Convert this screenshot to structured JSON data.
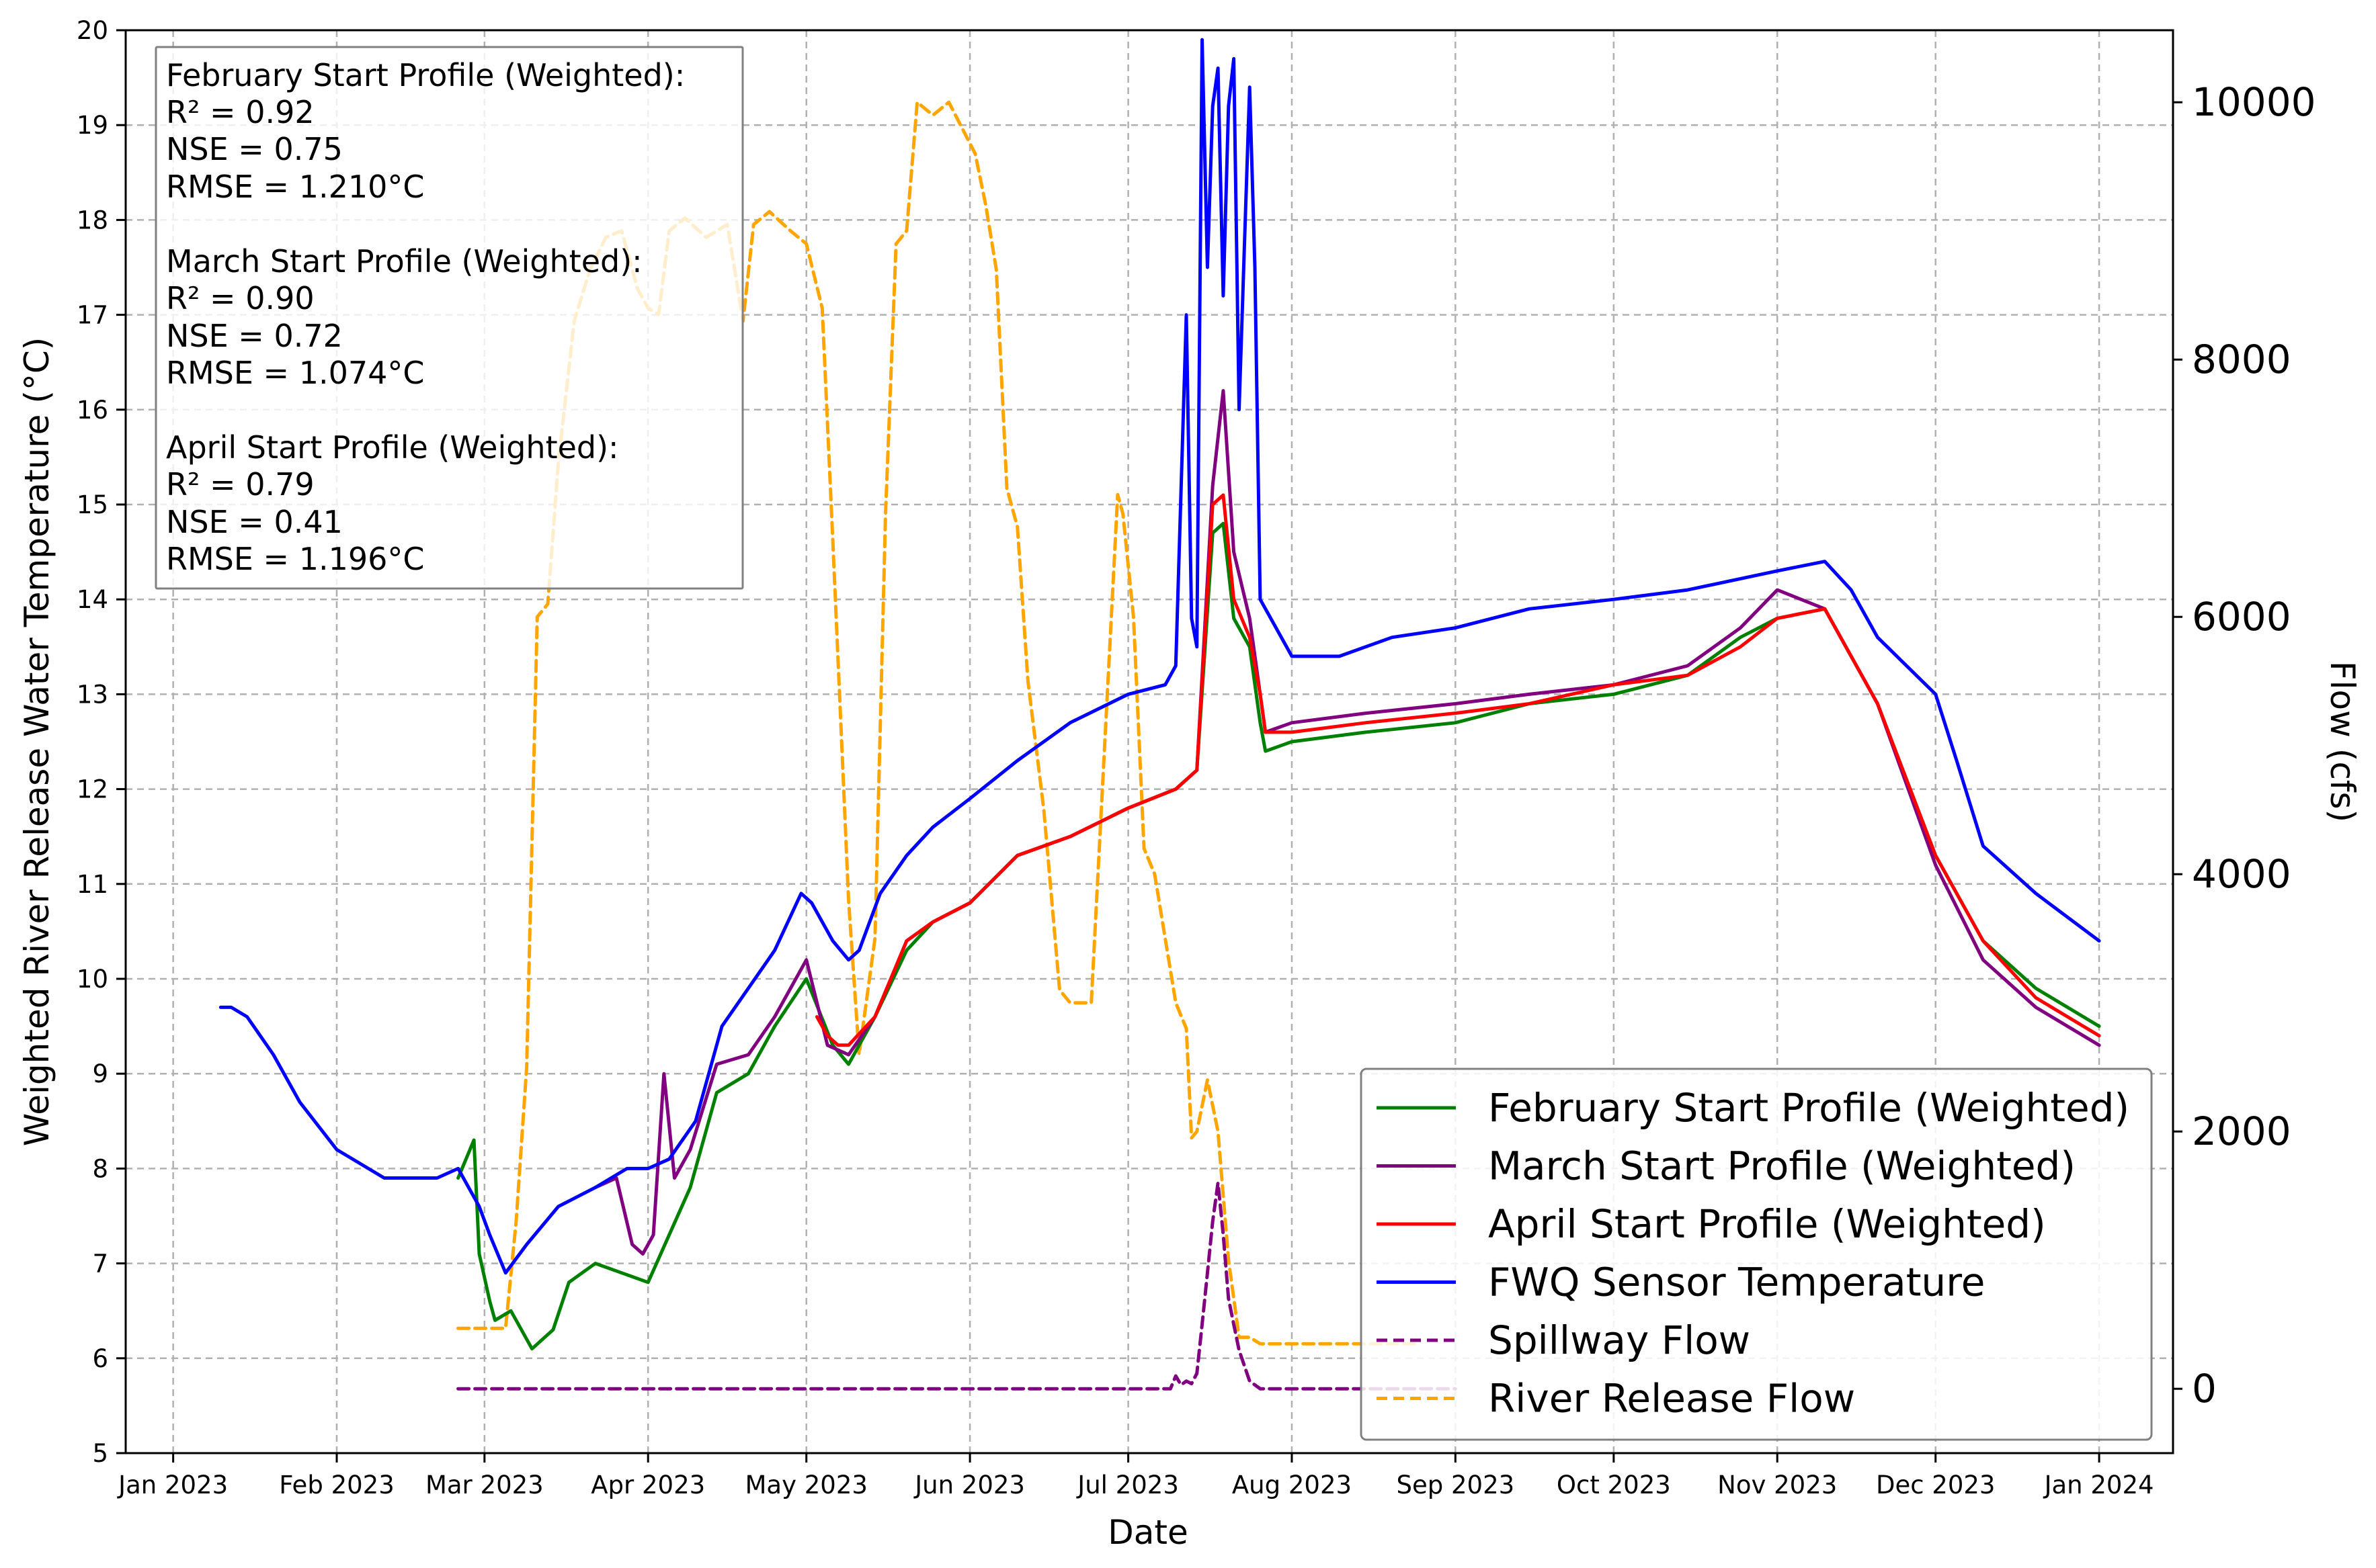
{
  "colors": {
    "february": "#008000",
    "march": "#800080",
    "april": "#ff0000",
    "sensor": "#0000ff",
    "spillway": "#800080",
    "river": "#ffa500",
    "grid": "#b0b0b0"
  },
  "stats": {
    "lines": [
      "February Start Profile (Weighted):",
      "R² = 0.92",
      "NSE = 0.75",
      "RMSE = 1.210°C",
      "",
      "March Start Profile (Weighted):",
      "R² = 0.90",
      "NSE = 0.72",
      "RMSE = 1.074°C",
      "",
      "April Start Profile (Weighted):",
      "R² = 0.79",
      "NSE = 0.41",
      "RMSE = 1.196°C"
    ]
  },
  "chart_data": {
    "type": "line",
    "xlabel": "Date",
    "ylabel": "Weighted River Release Water Temperature (°C)",
    "y2label": "Flow (cfs)",
    "xlim": [
      "2022-12-23",
      "2024-01-15"
    ],
    "ylim": [
      5,
      20
    ],
    "y2lim": [
      -500,
      10560
    ],
    "grid": true,
    "legend_position": "lower-right",
    "x_ticks": [
      "2023-01-01",
      "2023-02-01",
      "2023-03-01",
      "2023-04-01",
      "2023-05-01",
      "2023-06-01",
      "2023-07-01",
      "2023-08-01",
      "2023-09-01",
      "2023-10-01",
      "2023-11-01",
      "2023-12-01",
      "2024-01-01"
    ],
    "x_tick_labels": [
      "Jan 2023",
      "Feb 2023",
      "Mar 2023",
      "Apr 2023",
      "May 2023",
      "Jun 2023",
      "Jul 2023",
      "Aug 2023",
      "Sep 2023",
      "Oct 2023",
      "Nov 2023",
      "Dec 2023",
      "Jan 2024"
    ],
    "y_ticks": [
      "5",
      "6",
      "7",
      "8",
      "9",
      "10",
      "11",
      "12",
      "13",
      "14",
      "15",
      "16",
      "17",
      "18",
      "19",
      "20"
    ],
    "y2_ticks": [
      "0",
      "2000",
      "4000",
      "6000",
      "8000",
      "10000"
    ],
    "series": [
      {
        "name": "February Start Profile (Weighted)",
        "axis": "left",
        "style": "solid",
        "x": [
          "2023-02-24",
          "2023-02-27",
          "2023-02-28",
          "2023-03-02",
          "2023-03-03",
          "2023-03-06",
          "2023-03-10",
          "2023-03-14",
          "2023-03-17",
          "2023-03-22",
          "2023-03-27",
          "2023-04-01",
          "2023-04-05",
          "2023-04-09",
          "2023-04-14",
          "2023-04-20",
          "2023-04-25",
          "2023-05-01",
          "2023-05-06",
          "2023-05-09",
          "2023-05-14",
          "2023-05-20",
          "2023-05-25",
          "2023-06-01",
          "2023-06-10",
          "2023-06-20",
          "2023-07-01",
          "2023-07-10",
          "2023-07-14",
          "2023-07-17",
          "2023-07-19",
          "2023-07-21",
          "2023-07-24",
          "2023-07-26",
          "2023-07-27",
          "2023-08-01",
          "2023-08-15",
          "2023-09-01",
          "2023-09-15",
          "2023-10-01",
          "2023-10-15",
          "2023-10-25",
          "2023-11-01",
          "2023-11-10",
          "2023-11-20",
          "2023-12-01",
          "2023-12-10",
          "2023-12-20",
          "2024-01-01"
        ],
        "y": [
          7.9,
          8.3,
          7.1,
          6.6,
          6.4,
          6.5,
          6.1,
          6.3,
          6.8,
          7.0,
          6.9,
          6.8,
          7.3,
          7.8,
          8.8,
          9.0,
          9.5,
          10.0,
          9.3,
          9.1,
          9.6,
          10.3,
          10.6,
          10.8,
          11.3,
          11.5,
          11.8,
          12.0,
          12.2,
          14.7,
          14.8,
          13.8,
          13.5,
          12.7,
          12.4,
          12.5,
          12.6,
          12.7,
          12.9,
          13.0,
          13.2,
          13.6,
          13.8,
          13.9,
          12.9,
          11.3,
          10.4,
          9.9,
          9.5
        ]
      },
      {
        "name": "March Start Profile (Weighted)",
        "axis": "left",
        "style": "solid",
        "x": [
          "2023-03-22",
          "2023-03-26",
          "2023-03-29",
          "2023-03-31",
          "2023-04-02",
          "2023-04-04",
          "2023-04-06",
          "2023-04-09",
          "2023-04-14",
          "2023-04-20",
          "2023-04-25",
          "2023-05-01",
          "2023-05-05",
          "2023-05-09",
          "2023-05-14",
          "2023-05-20",
          "2023-05-25",
          "2023-06-01",
          "2023-06-10",
          "2023-06-20",
          "2023-07-01",
          "2023-07-10",
          "2023-07-14",
          "2023-07-17",
          "2023-07-19",
          "2023-07-21",
          "2023-07-24",
          "2023-07-26",
          "2023-07-27",
          "2023-08-01",
          "2023-08-15",
          "2023-09-01",
          "2023-09-15",
          "2023-10-01",
          "2023-10-15",
          "2023-10-25",
          "2023-11-01",
          "2023-11-10",
          "2023-11-20",
          "2023-12-01",
          "2023-12-10",
          "2023-12-20",
          "2024-01-01"
        ],
        "y": [
          7.8,
          7.9,
          7.2,
          7.1,
          7.3,
          9.0,
          7.9,
          8.2,
          9.1,
          9.2,
          9.6,
          10.2,
          9.3,
          9.2,
          9.6,
          10.4,
          10.6,
          10.8,
          11.3,
          11.5,
          11.8,
          12.0,
          12.2,
          15.2,
          16.2,
          14.5,
          13.8,
          13.0,
          12.6,
          12.7,
          12.8,
          12.9,
          13.0,
          13.1,
          13.3,
          13.7,
          14.1,
          13.9,
          12.9,
          11.2,
          10.2,
          9.7,
          9.3
        ]
      },
      {
        "name": "April Start Profile (Weighted)",
        "axis": "left",
        "style": "solid",
        "x": [
          "2023-05-03",
          "2023-05-05",
          "2023-05-07",
          "2023-05-09",
          "2023-05-14",
          "2023-05-20",
          "2023-05-25",
          "2023-06-01",
          "2023-06-10",
          "2023-06-20",
          "2023-07-01",
          "2023-07-10",
          "2023-07-14",
          "2023-07-17",
          "2023-07-19",
          "2023-07-21",
          "2023-07-24",
          "2023-07-26",
          "2023-07-27",
          "2023-08-01",
          "2023-08-15",
          "2023-09-01",
          "2023-09-15",
          "2023-10-01",
          "2023-10-15",
          "2023-10-25",
          "2023-11-01",
          "2023-11-10",
          "2023-11-20",
          "2023-12-01",
          "2023-12-10",
          "2023-12-20",
          "2024-01-01"
        ],
        "y": [
          9.6,
          9.4,
          9.3,
          9.3,
          9.6,
          10.4,
          10.6,
          10.8,
          11.3,
          11.5,
          11.8,
          12.0,
          12.2,
          15.0,
          15.1,
          14.0,
          13.6,
          13.0,
          12.6,
          12.6,
          12.7,
          12.8,
          12.9,
          13.1,
          13.2,
          13.5,
          13.8,
          13.9,
          12.9,
          11.3,
          10.4,
          9.8,
          9.4
        ]
      },
      {
        "name": "FWQ Sensor Temperature",
        "axis": "left",
        "style": "solid",
        "x": [
          "2023-01-10",
          "2023-01-12",
          "2023-01-15",
          "2023-01-20",
          "2023-01-25",
          "2023-02-01",
          "2023-02-10",
          "2023-02-20",
          "2023-02-24",
          "2023-02-28",
          "2023-03-02",
          "2023-03-05",
          "2023-03-09",
          "2023-03-15",
          "2023-03-22",
          "2023-03-28",
          "2023-04-01",
          "2023-04-05",
          "2023-04-10",
          "2023-04-15",
          "2023-04-20",
          "2023-04-25",
          "2023-04-30",
          "2023-05-02",
          "2023-05-06",
          "2023-05-09",
          "2023-05-11",
          "2023-05-15",
          "2023-05-20",
          "2023-05-25",
          "2023-06-01",
          "2023-06-10",
          "2023-06-20",
          "2023-07-01",
          "2023-07-08",
          "2023-07-10",
          "2023-07-12",
          "2023-07-13",
          "2023-07-14",
          "2023-07-15",
          "2023-07-16",
          "2023-07-17",
          "2023-07-18",
          "2023-07-19",
          "2023-07-20",
          "2023-07-21",
          "2023-07-22",
          "2023-07-23",
          "2023-07-24",
          "2023-07-25",
          "2023-07-26",
          "2023-07-28",
          "2023-08-01",
          "2023-08-10",
          "2023-08-20",
          "2023-09-01",
          "2023-09-15",
          "2023-10-01",
          "2023-10-15",
          "2023-11-01",
          "2023-11-10",
          "2023-11-15",
          "2023-11-20",
          "2023-12-01",
          "2023-12-05",
          "2023-12-10",
          "2023-12-20",
          "2024-01-01"
        ],
        "y": [
          9.7,
          9.7,
          9.6,
          9.2,
          8.7,
          8.2,
          7.9,
          7.9,
          8.0,
          7.6,
          7.3,
          6.9,
          7.2,
          7.6,
          7.8,
          8.0,
          8.0,
          8.1,
          8.5,
          9.5,
          9.9,
          10.3,
          10.9,
          10.8,
          10.4,
          10.2,
          10.3,
          10.9,
          11.3,
          11.6,
          11.9,
          12.3,
          12.7,
          13.0,
          13.1,
          13.3,
          17.0,
          13.8,
          13.5,
          19.9,
          17.5,
          19.2,
          19.6,
          17.2,
          19.2,
          19.7,
          16.0,
          17.7,
          19.4,
          17.5,
          14.0,
          13.8,
          13.4,
          13.4,
          13.6,
          13.7,
          13.9,
          14.0,
          14.1,
          14.3,
          14.4,
          14.1,
          13.6,
          13.0,
          12.3,
          11.4,
          10.9,
          10.4
        ]
      },
      {
        "name": "Spillway Flow",
        "axis": "right",
        "style": "dashed",
        "x": [
          "2023-02-24",
          "2023-07-09",
          "2023-07-10",
          "2023-07-11",
          "2023-07-12",
          "2023-07-13",
          "2023-07-14",
          "2023-07-15",
          "2023-07-16",
          "2023-07-17",
          "2023-07-18",
          "2023-07-19",
          "2023-07-20",
          "2023-07-21",
          "2023-07-22",
          "2023-07-24",
          "2023-07-26",
          "2023-08-01",
          "2023-09-01"
        ],
        "y": [
          0,
          0,
          100,
          30,
          60,
          40,
          120,
          500,
          900,
          1300,
          1600,
          1200,
          700,
          500,
          300,
          60,
          0,
          0,
          0
        ]
      },
      {
        "name": "River Release Flow",
        "axis": "right",
        "style": "dashed",
        "x": [
          "2023-02-24",
          "2023-03-01",
          "2023-03-05",
          "2023-03-07",
          "2023-03-09",
          "2023-03-11",
          "2023-03-13",
          "2023-03-15",
          "2023-03-18",
          "2023-03-21",
          "2023-03-24",
          "2023-03-27",
          "2023-03-30",
          "2023-04-01",
          "2023-04-03",
          "2023-04-05",
          "2023-04-08",
          "2023-04-12",
          "2023-04-16",
          "2023-04-19",
          "2023-04-21",
          "2023-04-24",
          "2023-04-28",
          "2023-05-01",
          "2023-05-04",
          "2023-05-06",
          "2023-05-09",
          "2023-05-11",
          "2023-05-14",
          "2023-05-16",
          "2023-05-18",
          "2023-05-20",
          "2023-05-22",
          "2023-05-25",
          "2023-05-28",
          "2023-06-02",
          "2023-06-04",
          "2023-06-06",
          "2023-06-08",
          "2023-06-10",
          "2023-06-12",
          "2023-06-15",
          "2023-06-18",
          "2023-06-20",
          "2023-06-24",
          "2023-06-29",
          "2023-06-30",
          "2023-07-02",
          "2023-07-04",
          "2023-07-06",
          "2023-07-08",
          "2023-07-10",
          "2023-07-12",
          "2023-07-13",
          "2023-07-14",
          "2023-07-16",
          "2023-07-18",
          "2023-07-20",
          "2023-07-22",
          "2023-07-24",
          "2023-07-26",
          "2023-07-29",
          "2023-08-10",
          "2023-08-20",
          "2023-08-25"
        ],
        "y": [
          470,
          470,
          470,
          1300,
          2500,
          6000,
          6100,
          7200,
          8300,
          8700,
          8950,
          9000,
          8550,
          8400,
          8350,
          9000,
          9100,
          8950,
          9050,
          8300,
          9050,
          9150,
          9000,
          8900,
          8400,
          6600,
          3800,
          2600,
          3500,
          6800,
          8900,
          9000,
          10000,
          9900,
          10000,
          9600,
          9200,
          8700,
          7000,
          6700,
          5500,
          4500,
          3100,
          3000,
          3000,
          6950,
          6800,
          6000,
          4200,
          4000,
          3500,
          3000,
          2800,
          1950,
          2000,
          2400,
          2000,
          1000,
          400,
          400,
          350,
          350,
          350,
          350,
          350
        ]
      }
    ]
  }
}
